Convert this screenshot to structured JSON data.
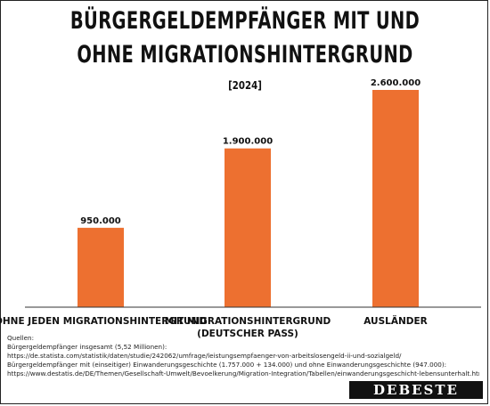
{
  "title_line1": "BÜRGERGELDEMPFÄNGER MIT UND",
  "title_line2": "OHNE MIGRATIONSHINTERGRUND",
  "subtitle": "[2024]",
  "colors": {
    "bar": "#ed7030",
    "axis": "#333333"
  },
  "chart_data": {
    "type": "bar",
    "title": "BÜRGERGELDEMPFÄNGER MIT UND OHNE MIGRATIONSHINTERGRUND",
    "subtitle": "[2024]",
    "categories": [
      [
        "OHNE JEDEN MIGRATIONSHINTERGRUND"
      ],
      [
        "MIT MIGRATIONSHINTERGRUND",
        "(DEUTSCHER PASS)"
      ],
      [
        "AUSLÄNDER"
      ]
    ],
    "values": [
      950000,
      1900000,
      2600000
    ],
    "value_labels": [
      "950.000",
      "1.900.000",
      "2.600.000"
    ],
    "ylim": [
      0,
      2600000
    ],
    "grid": false
  },
  "sources": {
    "heading": "Quellen:",
    "lines": [
      "Bürgergeldempfänger insgesamt (5,52 Millionen):",
      "https://de.statista.com/statistik/daten/studie/242062/umfrage/leistungsempfaenger-von-arbeitslosengeld-ii-und-sozialgeld/",
      "Bürgergeldempfänger mit (einseitiger) Einwanderungsgeschichte (1.757.000 + 134.000) und ohne Einwanderungsgeschichte (947.000):",
      "https://www.destatis.de/DE/Themen/Gesellschaft-Umwelt/Bevoelkerung/Migration-Integration/Tabellen/einwanderungsgeschicht-lebensunterhalt.html"
    ]
  },
  "watermark": "DEBESTE"
}
